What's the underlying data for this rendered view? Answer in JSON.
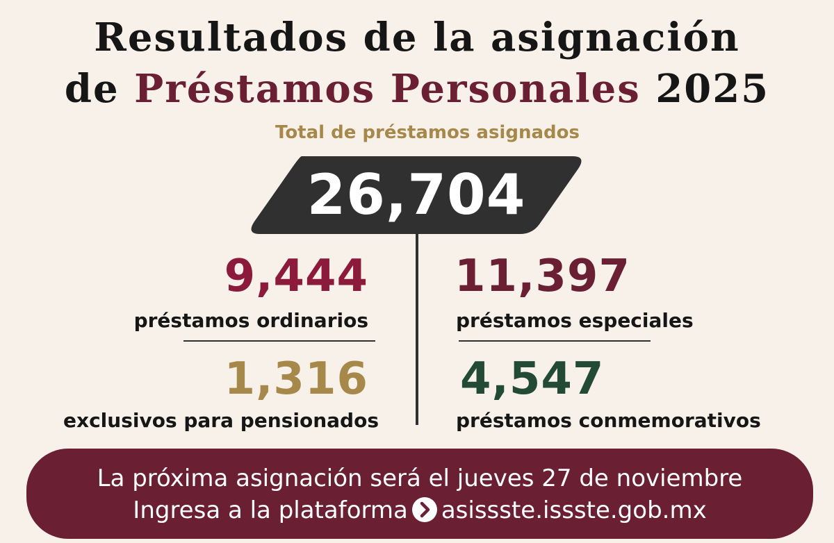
{
  "header": {
    "title_line1": "Resultados de la asignación",
    "title_line2_prefix": "de ",
    "title_line2_accent": "Préstamos Personales",
    "title_line2_suffix": " 2025"
  },
  "total": {
    "label": "Total de préstamos asignados",
    "value": "26,704"
  },
  "stats": {
    "ordinarios": {
      "value": "9,444",
      "label": "préstamos ordinarios",
      "color": "#8c1a3a"
    },
    "especiales": {
      "value": "11,397",
      "label": "préstamos especiales",
      "color": "#6a1f33"
    },
    "pensionados": {
      "value": "1,316",
      "label": "exclusivos para pensionados",
      "color": "#a6894a"
    },
    "conmemorativos": {
      "value": "4,547",
      "label": "préstamos conmemorativos",
      "color": "#234a35"
    }
  },
  "banner": {
    "line1": "La próxima asignación será el jueves 27 de noviembre",
    "line2_prefix": "Ingresa a la plataforma",
    "line2_url": "asissste.issste.gob.mx",
    "icon": "chevron-right-circle-icon"
  },
  "colors": {
    "background": "#f8f1ea",
    "dark": "#303030",
    "wine": "#6a1f33",
    "gold": "#a6894a"
  }
}
